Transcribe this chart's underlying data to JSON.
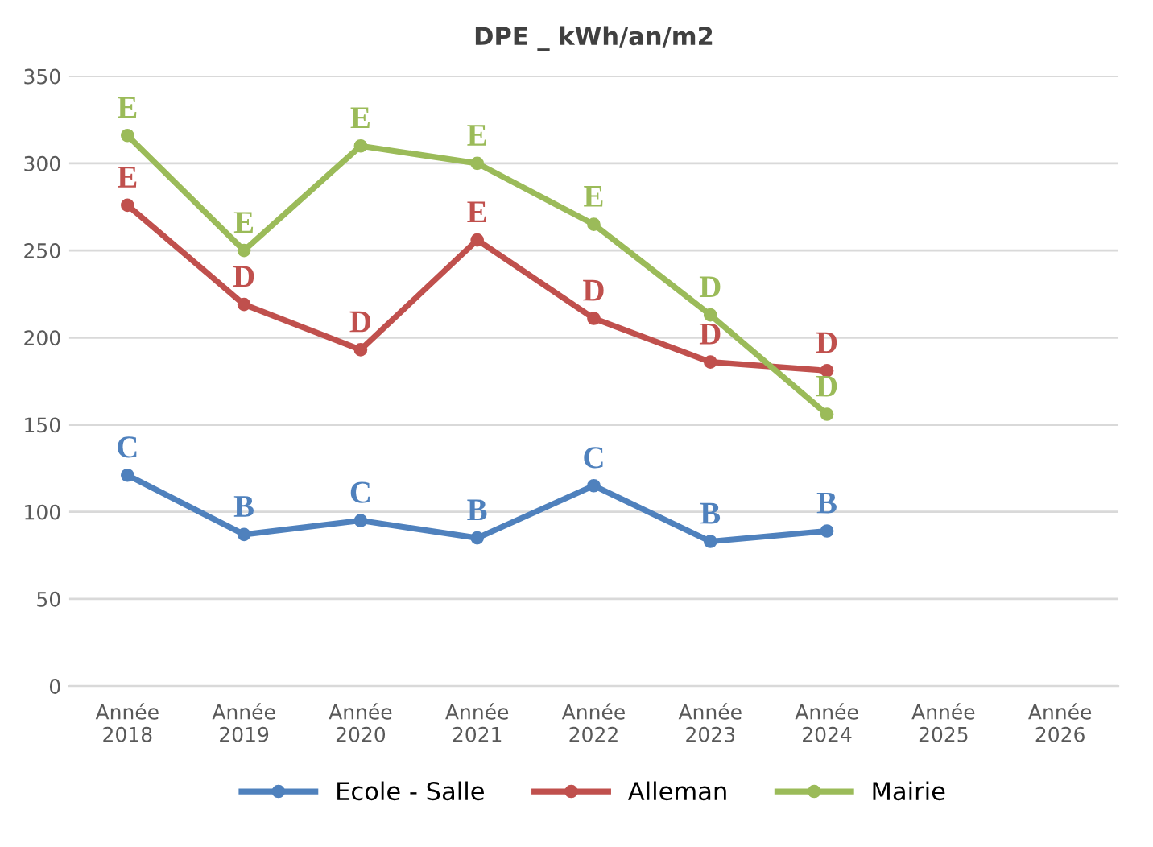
{
  "chart_data": {
    "type": "line",
    "title": "DPE _ kWh/an/m2",
    "categories": [
      "Année\n2018",
      "Année\n2019",
      "Année\n2020",
      "Année\n2021",
      "Année\n2022",
      "Année\n2023",
      "Année\n2024",
      "Année\n2025",
      "Année\n2026"
    ],
    "series": [
      {
        "name": "Ecole - Salle",
        "color": "#4f81bd",
        "values": [
          121,
          87,
          95,
          85,
          115,
          83,
          89,
          null,
          null
        ],
        "value_labels": [
          "C",
          "B",
          "C",
          "B",
          "C",
          "B",
          "B",
          null,
          null
        ]
      },
      {
        "name": "Alleman",
        "color": "#c0504d",
        "values": [
          276,
          219,
          193,
          256,
          211,
          186,
          181,
          null,
          null
        ],
        "value_labels": [
          "E",
          "D",
          "D",
          "E",
          "D",
          "D",
          "D",
          null,
          null
        ]
      },
      {
        "name": "Mairie",
        "color": "#9bbb59",
        "values": [
          316,
          250,
          310,
          300,
          265,
          213,
          156,
          null,
          null
        ],
        "value_labels": [
          "E",
          "E",
          "E",
          "E",
          "E",
          "D",
          "D",
          null,
          null
        ]
      }
    ],
    "ylim": [
      0,
      350
    ],
    "yticks": [
      0,
      50,
      100,
      150,
      200,
      250,
      300,
      350
    ],
    "grid": "y",
    "legend": "bottom",
    "marker": "circle",
    "line_style": "solid"
  }
}
